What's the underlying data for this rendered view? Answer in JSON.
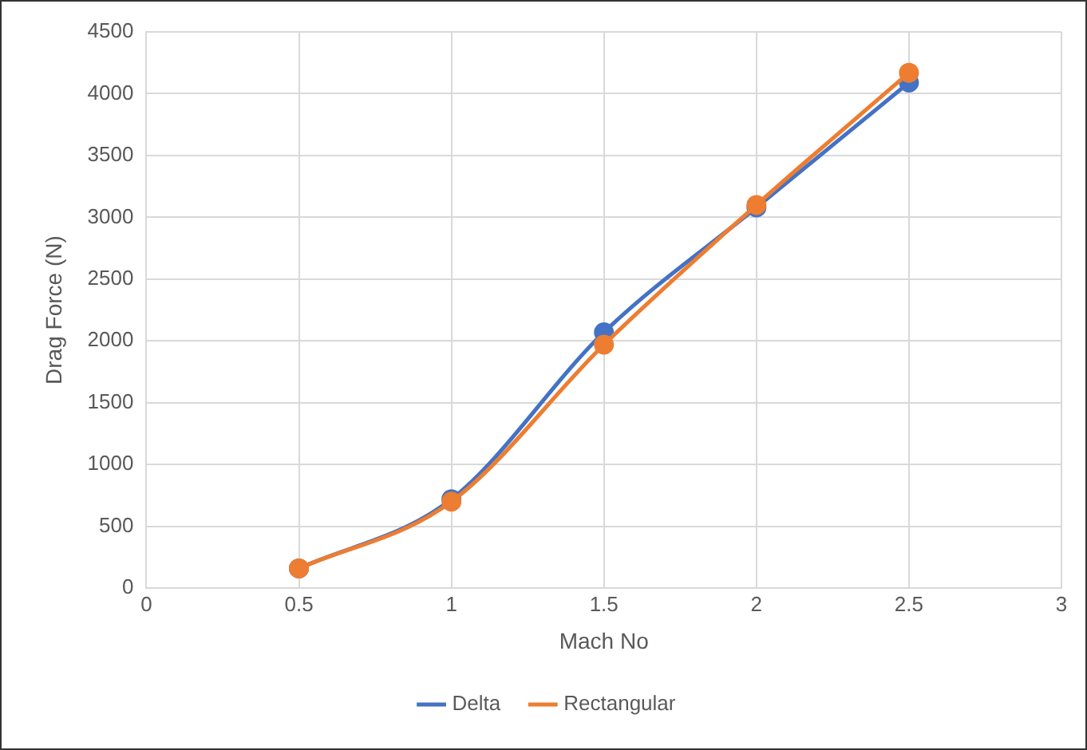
{
  "chart_data": {
    "type": "line",
    "xlabel": "Mach No",
    "ylabel": "Drag Force (N)",
    "x": [
      0.5,
      1,
      1.5,
      2,
      2.5
    ],
    "series": [
      {
        "name": "Delta",
        "color": "#4472c4",
        "values": [
          160,
          720,
          2070,
          3080,
          4090
        ]
      },
      {
        "name": "Rectangular",
        "color": "#ed7d31",
        "values": [
          160,
          700,
          1970,
          3100,
          4170
        ]
      }
    ],
    "xlim": [
      0,
      3
    ],
    "xticks": [
      0,
      0.5,
      1,
      1.5,
      2,
      2.5,
      3
    ],
    "ylim": [
      0,
      4500
    ],
    "yticks": [
      0,
      500,
      1000,
      1500,
      2000,
      2500,
      3000,
      3500,
      4000,
      4500
    ],
    "grid": true,
    "legend": "bottom",
    "marker": "circle",
    "line_style": "solid"
  }
}
